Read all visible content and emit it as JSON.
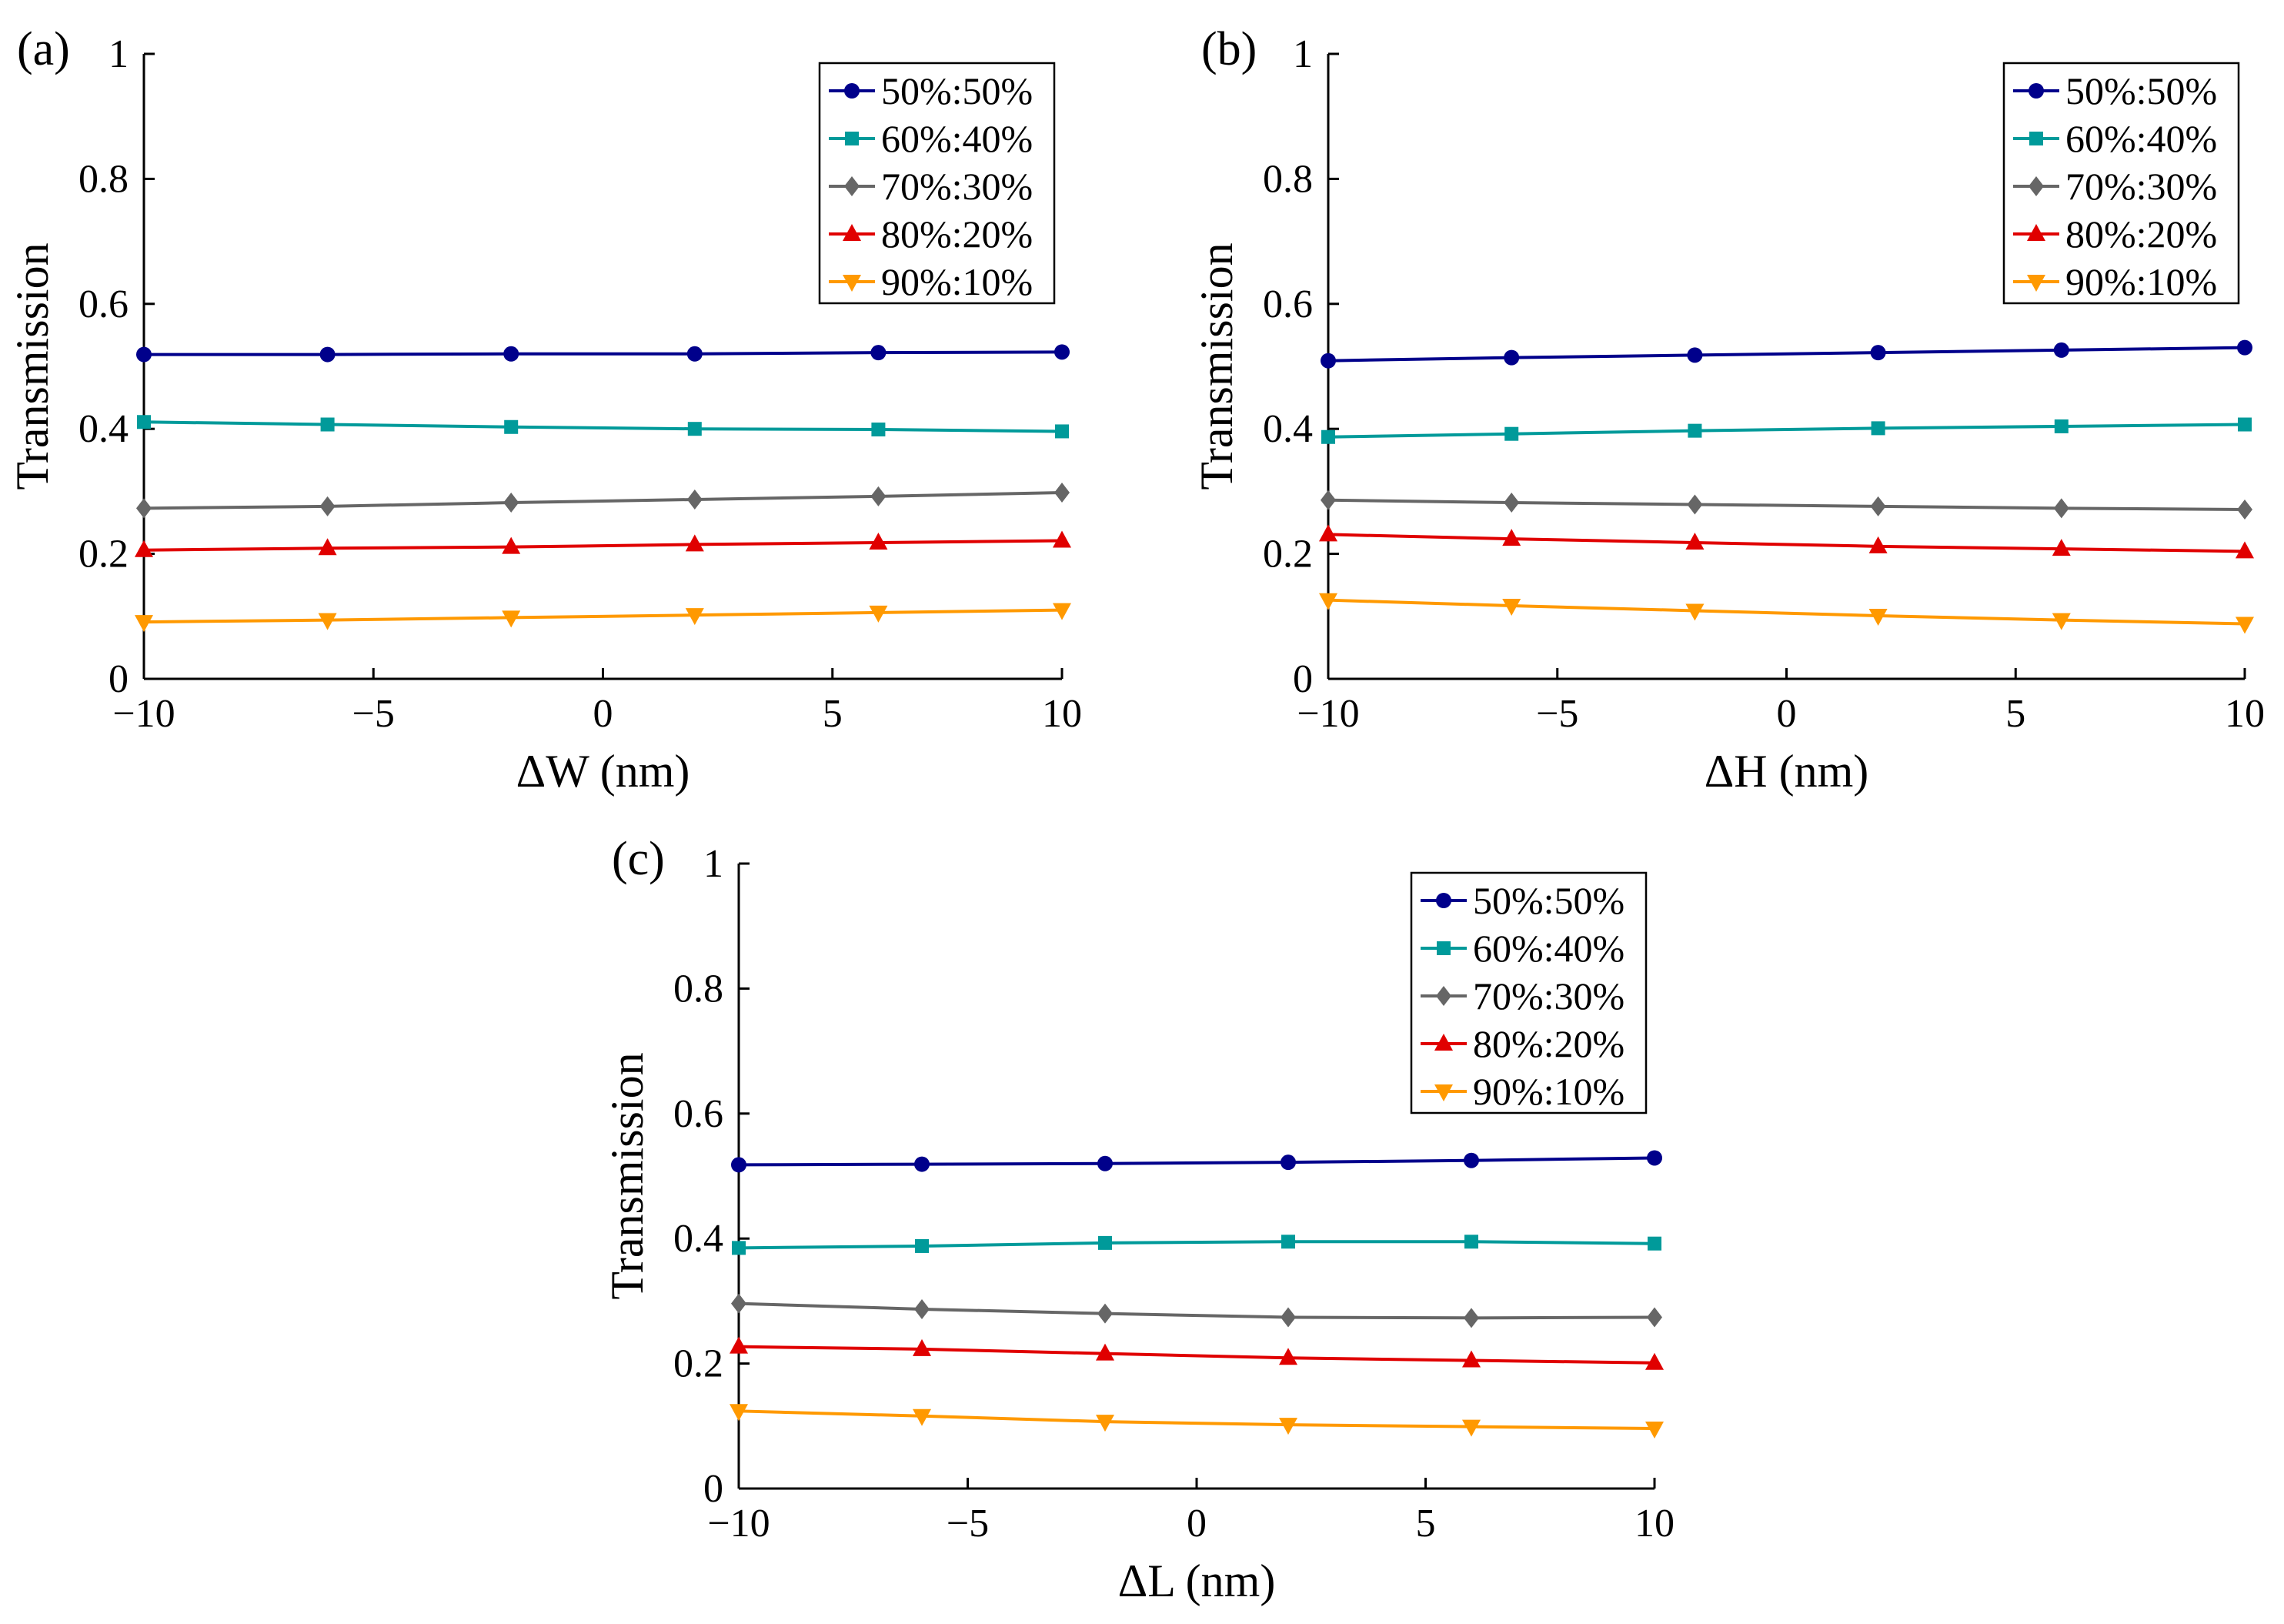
{
  "chart_data": [
    {
      "type": "line",
      "panel_label": "(a)",
      "xlabel": "ΔW (nm)",
      "ylabel": "Transmission",
      "xlim": [
        -10,
        10
      ],
      "ylim": [
        0,
        1
      ],
      "xticks": [
        -10,
        -5,
        0,
        5,
        10
      ],
      "xtick_labels": [
        "−10",
        "−5",
        "0",
        "5",
        "10"
      ],
      "yticks": [
        0,
        0.2,
        0.4,
        0.6,
        0.8,
        1
      ],
      "ytick_labels": [
        "0",
        "0.2",
        "0.4",
        "0.6",
        "0.8",
        "1"
      ],
      "legend_position": "top-right",
      "x": [
        -10,
        -6,
        -2,
        2,
        6,
        10
      ],
      "series": [
        {
          "name": "50%:50%",
          "color": "#00008b",
          "marker": "circle",
          "values": [
            0.519,
            0.519,
            0.52,
            0.52,
            0.522,
            0.523
          ]
        },
        {
          "name": "60%:40%",
          "color": "#009a9a",
          "marker": "square",
          "values": [
            0.411,
            0.407,
            0.403,
            0.4,
            0.399,
            0.396
          ]
        },
        {
          "name": "70%:30%",
          "color": "#666666",
          "marker": "diamond",
          "values": [
            0.273,
            0.276,
            0.282,
            0.287,
            0.292,
            0.298
          ]
        },
        {
          "name": "80%:20%",
          "color": "#e00000",
          "marker": "triangle-up",
          "values": [
            0.206,
            0.209,
            0.211,
            0.215,
            0.218,
            0.221
          ]
        },
        {
          "name": "90%:10%",
          "color": "#ff9900",
          "marker": "triangle-down",
          "values": [
            0.091,
            0.094,
            0.098,
            0.102,
            0.106,
            0.11
          ]
        }
      ]
    },
    {
      "type": "line",
      "panel_label": "(b)",
      "xlabel": "ΔH (nm)",
      "ylabel": "Transmission",
      "xlim": [
        -10,
        10
      ],
      "ylim": [
        0,
        1
      ],
      "xticks": [
        -10,
        -5,
        0,
        5,
        10
      ],
      "xtick_labels": [
        "−10",
        "−5",
        "0",
        "5",
        "10"
      ],
      "yticks": [
        0,
        0.2,
        0.4,
        0.6,
        0.8,
        1
      ],
      "ytick_labels": [
        "0",
        "0.2",
        "0.4",
        "0.6",
        "0.8",
        "1"
      ],
      "legend_position": "top-right",
      "x": [
        -10,
        -6,
        -2,
        2,
        6,
        10
      ],
      "series": [
        {
          "name": "50%:50%",
          "color": "#00008b",
          "marker": "circle",
          "values": [
            0.509,
            0.514,
            0.518,
            0.522,
            0.526,
            0.53
          ]
        },
        {
          "name": "60%:40%",
          "color": "#009a9a",
          "marker": "square",
          "values": [
            0.387,
            0.392,
            0.397,
            0.401,
            0.404,
            0.407
          ]
        },
        {
          "name": "70%:30%",
          "color": "#666666",
          "marker": "diamond",
          "values": [
            0.286,
            0.282,
            0.279,
            0.276,
            0.273,
            0.271
          ]
        },
        {
          "name": "80%:20%",
          "color": "#e00000",
          "marker": "triangle-up",
          "values": [
            0.231,
            0.224,
            0.218,
            0.212,
            0.208,
            0.204
          ]
        },
        {
          "name": "90%:10%",
          "color": "#ff9900",
          "marker": "triangle-down",
          "values": [
            0.126,
            0.117,
            0.109,
            0.101,
            0.094,
            0.088
          ]
        }
      ]
    },
    {
      "type": "line",
      "panel_label": "(c)",
      "xlabel": "ΔL (nm)",
      "ylabel": "Transmission",
      "xlim": [
        -10,
        10
      ],
      "ylim": [
        0,
        1
      ],
      "xticks": [
        -10,
        -5,
        0,
        5,
        10
      ],
      "xtick_labels": [
        "−10",
        "−5",
        "0",
        "5",
        "10"
      ],
      "yticks": [
        0,
        0.2,
        0.4,
        0.6,
        0.8,
        1
      ],
      "ytick_labels": [
        "0",
        "0.2",
        "0.4",
        "0.6",
        "0.8",
        "1"
      ],
      "legend_position": "top-right",
      "x": [
        -10,
        -6,
        -2,
        2,
        6,
        10
      ],
      "series": [
        {
          "name": "50%:50%",
          "color": "#00008b",
          "marker": "circle",
          "values": [
            0.518,
            0.519,
            0.52,
            0.522,
            0.525,
            0.529
          ]
        },
        {
          "name": "60%:40%",
          "color": "#009a9a",
          "marker": "square",
          "values": [
            0.385,
            0.388,
            0.393,
            0.395,
            0.395,
            0.392
          ]
        },
        {
          "name": "70%:30%",
          "color": "#666666",
          "marker": "diamond",
          "values": [
            0.296,
            0.287,
            0.28,
            0.274,
            0.273,
            0.274
          ]
        },
        {
          "name": "80%:20%",
          "color": "#e00000",
          "marker": "triangle-up",
          "values": [
            0.227,
            0.223,
            0.216,
            0.209,
            0.205,
            0.201
          ]
        },
        {
          "name": "90%:10%",
          "color": "#ff9900",
          "marker": "triangle-down",
          "values": [
            0.124,
            0.116,
            0.107,
            0.102,
            0.099,
            0.096
          ]
        }
      ]
    }
  ]
}
